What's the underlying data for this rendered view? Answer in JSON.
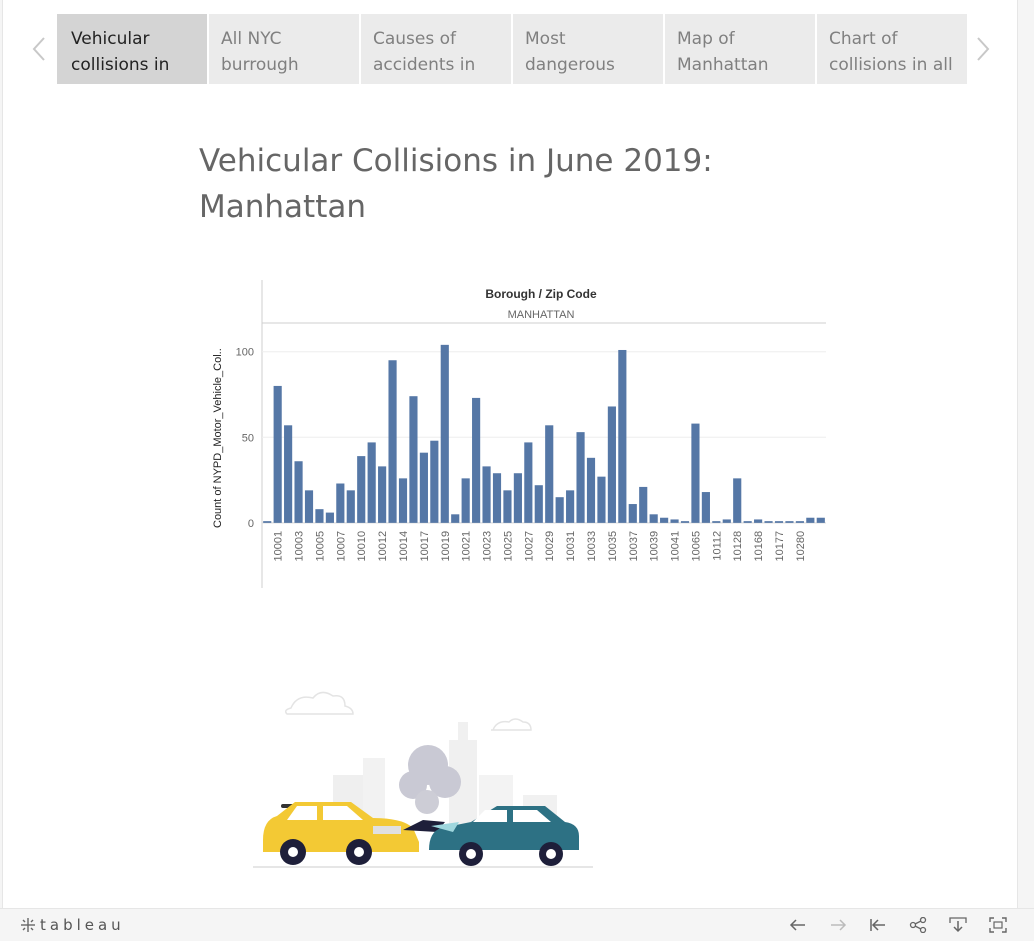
{
  "story": {
    "tabs": [
      {
        "label": "Vehicular collisions in",
        "active": true
      },
      {
        "label": "All NYC burrough data,",
        "active": false
      },
      {
        "label": "Causes of accidents in",
        "active": false
      },
      {
        "label": "Most dangerous",
        "active": false
      },
      {
        "label": "Map of Manhattan",
        "active": false
      },
      {
        "label": "Chart of collisions in all",
        "active": false
      }
    ]
  },
  "page": {
    "title": "Vehicular Collisions in June 2019: Manhattan"
  },
  "chart_data": {
    "type": "bar",
    "header_title": "Borough / Zip Code",
    "header_group": "MANHATTAN",
    "ylabel": "Count of NYPD_Motor_Vehicle_Col..",
    "ylim": [
      -3,
      108
    ],
    "yticks": [
      0,
      50,
      100
    ],
    "grid": true,
    "color": "#5577a6",
    "tick_labels": [
      "10001",
      "10003",
      "10005",
      "10007",
      "10010",
      "10012",
      "10014",
      "10017",
      "10019",
      "10021",
      "10023",
      "10025",
      "10027",
      "10029",
      "10031",
      "10033",
      "10035",
      "10037",
      "10039",
      "10041",
      "10065",
      "10112",
      "10128",
      "10168",
      "10177",
      "10280"
    ],
    "values": [
      1,
      80,
      57,
      36,
      19,
      8,
      6,
      23,
      19,
      39,
      47,
      33,
      95,
      26,
      74,
      41,
      48,
      104,
      5,
      26,
      73,
      33,
      29,
      19,
      29,
      47,
      22,
      57,
      15,
      19,
      53,
      38,
      27,
      68,
      101,
      11,
      21,
      5,
      3,
      2,
      1,
      58,
      18,
      1,
      2,
      26,
      1,
      2,
      1,
      1,
      1,
      1,
      3,
      3
    ]
  },
  "brand": {
    "name": "tableau"
  },
  "colors": {
    "bar": "#5577a6",
    "tab_active": "#d4d4d4",
    "tab": "#ebebeb",
    "title": "#666666"
  }
}
